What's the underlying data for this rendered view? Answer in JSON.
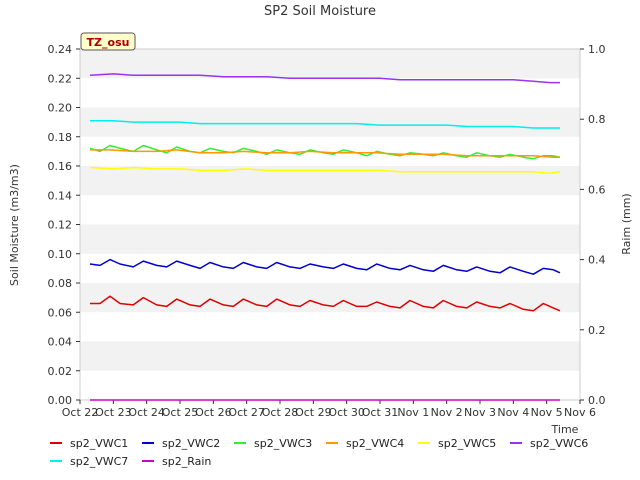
{
  "chart_data": {
    "type": "line",
    "title": "SP2 Soil Moisture",
    "badge": "TZ_osu",
    "xlabel": "Time",
    "ylabel": "Soil Moisture (m3/m3)",
    "y2label": "Raim (mm)",
    "xlim": [
      0,
      15
    ],
    "ylim": [
      0,
      0.24
    ],
    "y2lim": [
      0,
      1.0
    ],
    "grid": "horizontal bands",
    "x_ticks": [
      {
        "x": 0,
        "label": "Oct 22"
      },
      {
        "x": 1,
        "label": "Oct 23"
      },
      {
        "x": 2,
        "label": "Oct 24"
      },
      {
        "x": 3,
        "label": "Oct 25"
      },
      {
        "x": 4,
        "label": "Oct 26"
      },
      {
        "x": 5,
        "label": "Oct 27"
      },
      {
        "x": 6,
        "label": "Oct 28"
      },
      {
        "x": 7,
        "label": "Oct 29"
      },
      {
        "x": 8,
        "label": "Oct 30"
      },
      {
        "x": 9,
        "label": "Oct 31"
      },
      {
        "x": 10,
        "label": "Nov 1"
      },
      {
        "x": 11,
        "label": "Nov 2"
      },
      {
        "x": 12,
        "label": "Nov 3"
      },
      {
        "x": 13,
        "label": "Nov 4"
      },
      {
        "x": 14,
        "label": "Nov 5"
      },
      {
        "x": 15,
        "label": "Nov 6"
      }
    ],
    "y_ticks": [
      "0.00",
      "0.02",
      "0.04",
      "0.06",
      "0.08",
      "0.10",
      "0.12",
      "0.14",
      "0.16",
      "0.18",
      "0.20",
      "0.22",
      "0.24"
    ],
    "y2_ticks": [
      "0.0",
      "0.2",
      "0.4",
      "0.6",
      "0.8",
      "1.0"
    ],
    "series": [
      {
        "name": "sp2_VWC1",
        "color": "#dd0000",
        "axis": "left",
        "points": [
          [
            0.3,
            0.066
          ],
          [
            0.6,
            0.066
          ],
          [
            0.9,
            0.071
          ],
          [
            1.2,
            0.066
          ],
          [
            1.6,
            0.065
          ],
          [
            1.9,
            0.07
          ],
          [
            2.3,
            0.065
          ],
          [
            2.6,
            0.064
          ],
          [
            2.9,
            0.069
          ],
          [
            3.3,
            0.065
          ],
          [
            3.6,
            0.064
          ],
          [
            3.9,
            0.069
          ],
          [
            4.3,
            0.065
          ],
          [
            4.6,
            0.064
          ],
          [
            4.9,
            0.069
          ],
          [
            5.3,
            0.065
          ],
          [
            5.6,
            0.064
          ],
          [
            5.9,
            0.069
          ],
          [
            6.3,
            0.065
          ],
          [
            6.6,
            0.064
          ],
          [
            6.9,
            0.068
          ],
          [
            7.3,
            0.065
          ],
          [
            7.6,
            0.064
          ],
          [
            7.9,
            0.068
          ],
          [
            8.3,
            0.064
          ],
          [
            8.6,
            0.064
          ],
          [
            8.9,
            0.067
          ],
          [
            9.3,
            0.064
          ],
          [
            9.6,
            0.063
          ],
          [
            9.9,
            0.068
          ],
          [
            10.3,
            0.064
          ],
          [
            10.6,
            0.063
          ],
          [
            10.9,
            0.068
          ],
          [
            11.3,
            0.064
          ],
          [
            11.6,
            0.063
          ],
          [
            11.9,
            0.067
          ],
          [
            12.3,
            0.064
          ],
          [
            12.6,
            0.063
          ],
          [
            12.9,
            0.066
          ],
          [
            13.3,
            0.062
          ],
          [
            13.6,
            0.061
          ],
          [
            13.9,
            0.066
          ],
          [
            14.2,
            0.063
          ],
          [
            14.4,
            0.061
          ]
        ]
      },
      {
        "name": "sp2_VWC2",
        "color": "#0000cc",
        "axis": "left",
        "points": [
          [
            0.3,
            0.093
          ],
          [
            0.6,
            0.092
          ],
          [
            0.9,
            0.096
          ],
          [
            1.2,
            0.093
          ],
          [
            1.6,
            0.091
          ],
          [
            1.9,
            0.095
          ],
          [
            2.3,
            0.092
          ],
          [
            2.6,
            0.091
          ],
          [
            2.9,
            0.095
          ],
          [
            3.3,
            0.092
          ],
          [
            3.6,
            0.09
          ],
          [
            3.9,
            0.094
          ],
          [
            4.3,
            0.091
          ],
          [
            4.6,
            0.09
          ],
          [
            4.9,
            0.094
          ],
          [
            5.3,
            0.091
          ],
          [
            5.6,
            0.09
          ],
          [
            5.9,
            0.094
          ],
          [
            6.3,
            0.091
          ],
          [
            6.6,
            0.09
          ],
          [
            6.9,
            0.093
          ],
          [
            7.3,
            0.091
          ],
          [
            7.6,
            0.09
          ],
          [
            7.9,
            0.093
          ],
          [
            8.3,
            0.09
          ],
          [
            8.6,
            0.089
          ],
          [
            8.9,
            0.093
          ],
          [
            9.3,
            0.09
          ],
          [
            9.6,
            0.089
          ],
          [
            9.9,
            0.092
          ],
          [
            10.3,
            0.089
          ],
          [
            10.6,
            0.088
          ],
          [
            10.9,
            0.092
          ],
          [
            11.3,
            0.089
          ],
          [
            11.6,
            0.088
          ],
          [
            11.9,
            0.091
          ],
          [
            12.3,
            0.088
          ],
          [
            12.6,
            0.087
          ],
          [
            12.9,
            0.091
          ],
          [
            13.3,
            0.088
          ],
          [
            13.6,
            0.086
          ],
          [
            13.9,
            0.09
          ],
          [
            14.2,
            0.089
          ],
          [
            14.4,
            0.087
          ]
        ]
      },
      {
        "name": "sp2_VWC3",
        "color": "#33ee33",
        "axis": "left",
        "points": [
          [
            0.3,
            0.172
          ],
          [
            0.6,
            0.17
          ],
          [
            0.9,
            0.174
          ],
          [
            1.2,
            0.172
          ],
          [
            1.6,
            0.17
          ],
          [
            1.9,
            0.174
          ],
          [
            2.3,
            0.171
          ],
          [
            2.6,
            0.169
          ],
          [
            2.9,
            0.173
          ],
          [
            3.3,
            0.17
          ],
          [
            3.6,
            0.169
          ],
          [
            3.9,
            0.172
          ],
          [
            4.3,
            0.17
          ],
          [
            4.6,
            0.169
          ],
          [
            4.9,
            0.172
          ],
          [
            5.3,
            0.17
          ],
          [
            5.6,
            0.168
          ],
          [
            5.9,
            0.171
          ],
          [
            6.3,
            0.169
          ],
          [
            6.6,
            0.168
          ],
          [
            6.9,
            0.171
          ],
          [
            7.3,
            0.169
          ],
          [
            7.6,
            0.168
          ],
          [
            7.9,
            0.171
          ],
          [
            8.3,
            0.169
          ],
          [
            8.6,
            0.167
          ],
          [
            8.9,
            0.17
          ],
          [
            9.3,
            0.168
          ],
          [
            9.6,
            0.167
          ],
          [
            9.9,
            0.169
          ],
          [
            10.3,
            0.168
          ],
          [
            10.6,
            0.167
          ],
          [
            10.9,
            0.169
          ],
          [
            11.3,
            0.167
          ],
          [
            11.6,
            0.166
          ],
          [
            11.9,
            0.169
          ],
          [
            12.3,
            0.167
          ],
          [
            12.6,
            0.166
          ],
          [
            12.9,
            0.168
          ],
          [
            13.3,
            0.166
          ],
          [
            13.6,
            0.165
          ],
          [
            13.9,
            0.167
          ],
          [
            14.2,
            0.167
          ],
          [
            14.4,
            0.166
          ]
        ]
      },
      {
        "name": "sp2_VWC4",
        "color": "#ff9900",
        "axis": "left",
        "points": [
          [
            0.3,
            0.171
          ],
          [
            0.9,
            0.171
          ],
          [
            1.6,
            0.17
          ],
          [
            2.3,
            0.17
          ],
          [
            2.9,
            0.171
          ],
          [
            3.6,
            0.169
          ],
          [
            4.3,
            0.169
          ],
          [
            4.9,
            0.17
          ],
          [
            5.6,
            0.169
          ],
          [
            6.3,
            0.169
          ],
          [
            6.9,
            0.17
          ],
          [
            7.6,
            0.169
          ],
          [
            8.3,
            0.169
          ],
          [
            8.9,
            0.169
          ],
          [
            9.6,
            0.168
          ],
          [
            10.3,
            0.168
          ],
          [
            10.9,
            0.168
          ],
          [
            11.6,
            0.167
          ],
          [
            12.3,
            0.167
          ],
          [
            12.9,
            0.167
          ],
          [
            13.6,
            0.167
          ],
          [
            14.2,
            0.166
          ],
          [
            14.4,
            0.166
          ]
        ]
      },
      {
        "name": "sp2_VWC5",
        "color": "#ffff00",
        "axis": "left",
        "points": [
          [
            0.3,
            0.159
          ],
          [
            1.0,
            0.158
          ],
          [
            1.6,
            0.159
          ],
          [
            2.3,
            0.158
          ],
          [
            3.0,
            0.158
          ],
          [
            3.6,
            0.157
          ],
          [
            4.3,
            0.157
          ],
          [
            5.0,
            0.158
          ],
          [
            5.6,
            0.157
          ],
          [
            6.3,
            0.157
          ],
          [
            7.0,
            0.157
          ],
          [
            7.6,
            0.157
          ],
          [
            8.3,
            0.157
          ],
          [
            9.0,
            0.157
          ],
          [
            9.6,
            0.156
          ],
          [
            10.3,
            0.156
          ],
          [
            11.0,
            0.156
          ],
          [
            11.6,
            0.156
          ],
          [
            12.3,
            0.156
          ],
          [
            13.0,
            0.156
          ],
          [
            13.6,
            0.156
          ],
          [
            14.1,
            0.155
          ],
          [
            14.4,
            0.156
          ]
        ]
      },
      {
        "name": "sp2_VWC6",
        "color": "#9933ee",
        "axis": "left",
        "points": [
          [
            0.3,
            0.222
          ],
          [
            1.0,
            0.223
          ],
          [
            1.6,
            0.222
          ],
          [
            2.3,
            0.222
          ],
          [
            3.0,
            0.222
          ],
          [
            3.6,
            0.222
          ],
          [
            4.3,
            0.221
          ],
          [
            5.0,
            0.221
          ],
          [
            5.6,
            0.221
          ],
          [
            6.3,
            0.22
          ],
          [
            7.0,
            0.22
          ],
          [
            7.6,
            0.22
          ],
          [
            8.3,
            0.22
          ],
          [
            9.0,
            0.22
          ],
          [
            9.6,
            0.219
          ],
          [
            10.3,
            0.219
          ],
          [
            11.0,
            0.219
          ],
          [
            11.6,
            0.219
          ],
          [
            12.3,
            0.219
          ],
          [
            13.0,
            0.219
          ],
          [
            13.6,
            0.218
          ],
          [
            14.1,
            0.217
          ],
          [
            14.4,
            0.217
          ]
        ]
      },
      {
        "name": "sp2_VWC7",
        "color": "#00eeee",
        "axis": "left",
        "points": [
          [
            0.3,
            0.191
          ],
          [
            1.0,
            0.191
          ],
          [
            1.6,
            0.19
          ],
          [
            2.3,
            0.19
          ],
          [
            3.0,
            0.19
          ],
          [
            3.6,
            0.189
          ],
          [
            4.3,
            0.189
          ],
          [
            5.0,
            0.189
          ],
          [
            5.6,
            0.189
          ],
          [
            6.3,
            0.189
          ],
          [
            7.0,
            0.189
          ],
          [
            7.6,
            0.189
          ],
          [
            8.3,
            0.189
          ],
          [
            9.0,
            0.188
          ],
          [
            9.6,
            0.188
          ],
          [
            10.3,
            0.188
          ],
          [
            11.0,
            0.188
          ],
          [
            11.6,
            0.187
          ],
          [
            12.3,
            0.187
          ],
          [
            13.0,
            0.187
          ],
          [
            13.6,
            0.186
          ],
          [
            14.1,
            0.186
          ],
          [
            14.4,
            0.186
          ]
        ]
      },
      {
        "name": "sp2_Rain",
        "color": "#cc00cc",
        "axis": "right",
        "points": [
          [
            0.3,
            0.0
          ],
          [
            14.4,
            0.0
          ]
        ]
      }
    ]
  }
}
